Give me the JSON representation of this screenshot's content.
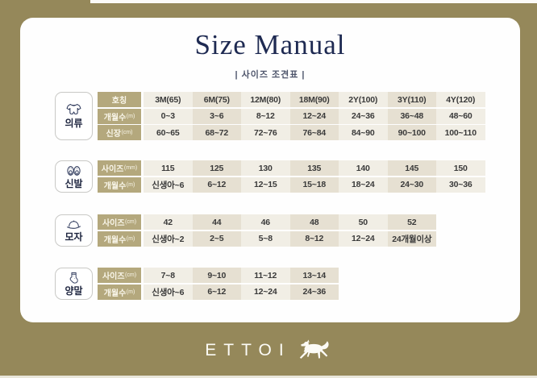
{
  "header": {
    "title": "Size Manual",
    "subtitle": "| 사이즈 조견표 |"
  },
  "colors": {
    "background": "#95885A",
    "card": "#FEFEFE",
    "title_navy": "#1E2A52",
    "header_cell": "#B4A87D",
    "cell_light": "#F1EEE5",
    "cell_dark": "#E6E0D2",
    "cell_text": "#3A3A3A",
    "logo_white": "#FCFBF6"
  },
  "tables": [
    {
      "id": "clothing",
      "category": "의류",
      "icon": "onesie-icon",
      "rows": [
        {
          "label": "호칭",
          "unit": "",
          "cells": [
            "3M(65)",
            "6M(75)",
            "12M(80)",
            "18M(90)",
            "2Y(100)",
            "3Y(110)",
            "4Y(120)"
          ]
        },
        {
          "label": "개월수",
          "unit": "(m)",
          "cells": [
            "0~3",
            "3~6",
            "8~12",
            "12~24",
            "24~36",
            "36~48",
            "48~60"
          ]
        },
        {
          "label": "신장",
          "unit": "(cm)",
          "cells": [
            "60~65",
            "68~72",
            "72~76",
            "76~84",
            "84~90",
            "90~100",
            "100~110"
          ]
        }
      ]
    },
    {
      "id": "shoes",
      "category": "신발",
      "icon": "shoes-icon",
      "rows": [
        {
          "label": "사이즈",
          "unit": "(mm)",
          "cells": [
            "115",
            "125",
            "130",
            "135",
            "140",
            "145",
            "150"
          ]
        },
        {
          "label": "개월수",
          "unit": "(m)",
          "cells": [
            "신생아~6",
            "6~12",
            "12~15",
            "15~18",
            "18~24",
            "24~30",
            "30~36"
          ]
        }
      ]
    },
    {
      "id": "hat",
      "category": "모자",
      "icon": "hat-icon",
      "rows": [
        {
          "label": "사이즈",
          "unit": "(cm)",
          "cells": [
            "42",
            "44",
            "46",
            "48",
            "50",
            "52"
          ]
        },
        {
          "label": "개월수",
          "unit": "(m)",
          "cells": [
            "신생아~2",
            "2~5",
            "5~8",
            "8~12",
            "12~24",
            "24개월이상"
          ]
        }
      ]
    },
    {
      "id": "socks",
      "category": "양말",
      "icon": "socks-icon",
      "rows": [
        {
          "label": "사이즈",
          "unit": "(cm)",
          "cells": [
            "7~8",
            "9~10",
            "11~12",
            "13~14"
          ]
        },
        {
          "label": "개월수",
          "unit": "(m)",
          "cells": [
            "신생아~6",
            "6~12",
            "12~24",
            "24~36"
          ]
        }
      ]
    }
  ],
  "footer": {
    "brand": "ETTOI",
    "logo": "horse-icon"
  }
}
